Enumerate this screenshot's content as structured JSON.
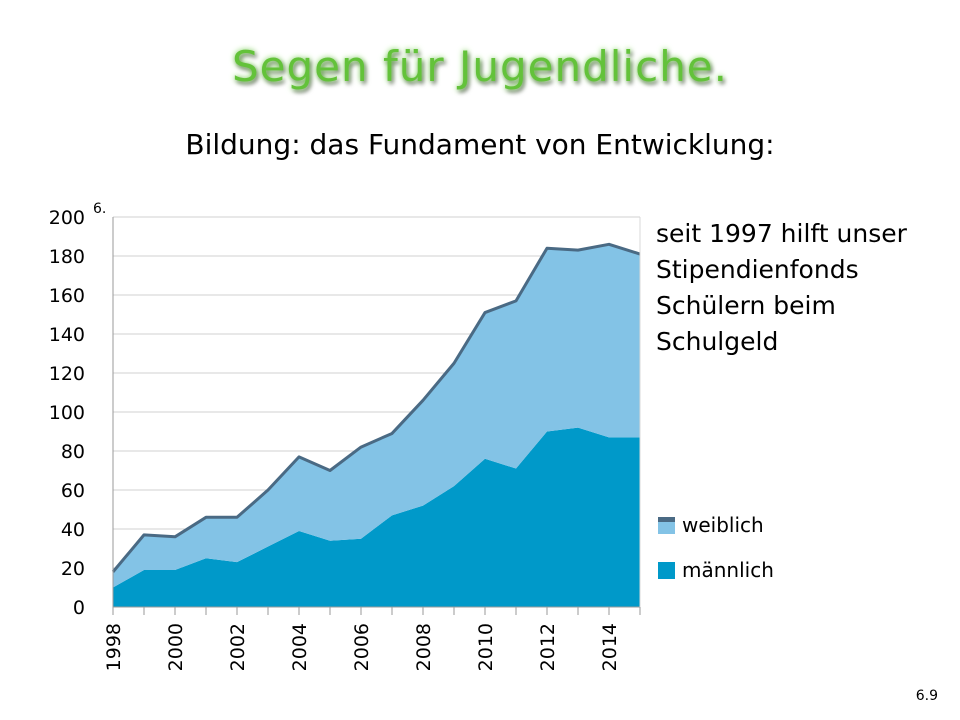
{
  "title": "Segen für Jugendliche.",
  "subtitle": "Bildung: das Fundament von Entwicklung:",
  "note_lines": [
    "seit 1997 hilft unser",
    "Stipendienfonds",
    "Schülern beim",
    "Schulgeld"
  ],
  "chart_label": "6.",
  "page_number": "6.9",
  "chart_data": {
    "type": "area",
    "stacked": true,
    "x": [
      1998,
      1999,
      2000,
      2001,
      2002,
      2003,
      2004,
      2005,
      2006,
      2007,
      2008,
      2009,
      2010,
      2011,
      2012,
      2013,
      2014,
      2015
    ],
    "x_tick_labels": [
      "1998",
      "2000",
      "2002",
      "2004",
      "2006",
      "2008",
      "2010",
      "2012",
      "2014"
    ],
    "y_tick_labels": [
      "0",
      "20",
      "40",
      "60",
      "80",
      "100",
      "120",
      "140",
      "160",
      "180",
      "200"
    ],
    "ylim": [
      0,
      200
    ],
    "xlim": [
      1998,
      2015
    ],
    "grid": true,
    "legend_position": "right",
    "series": [
      {
        "name": "männlich",
        "color": "#0099c9",
        "values": [
          10,
          19,
          19,
          25,
          23,
          31,
          39,
          34,
          35,
          47,
          52,
          62,
          76,
          71,
          90,
          92,
          87,
          87
        ]
      },
      {
        "name": "weiblich",
        "color": "#83c3e6",
        "edge_color": "#4a6a84",
        "values": [
          8,
          18,
          17,
          21,
          23,
          29,
          38,
          36,
          47,
          42,
          54,
          63,
          75,
          86,
          94,
          91,
          99,
          94
        ]
      }
    ]
  }
}
